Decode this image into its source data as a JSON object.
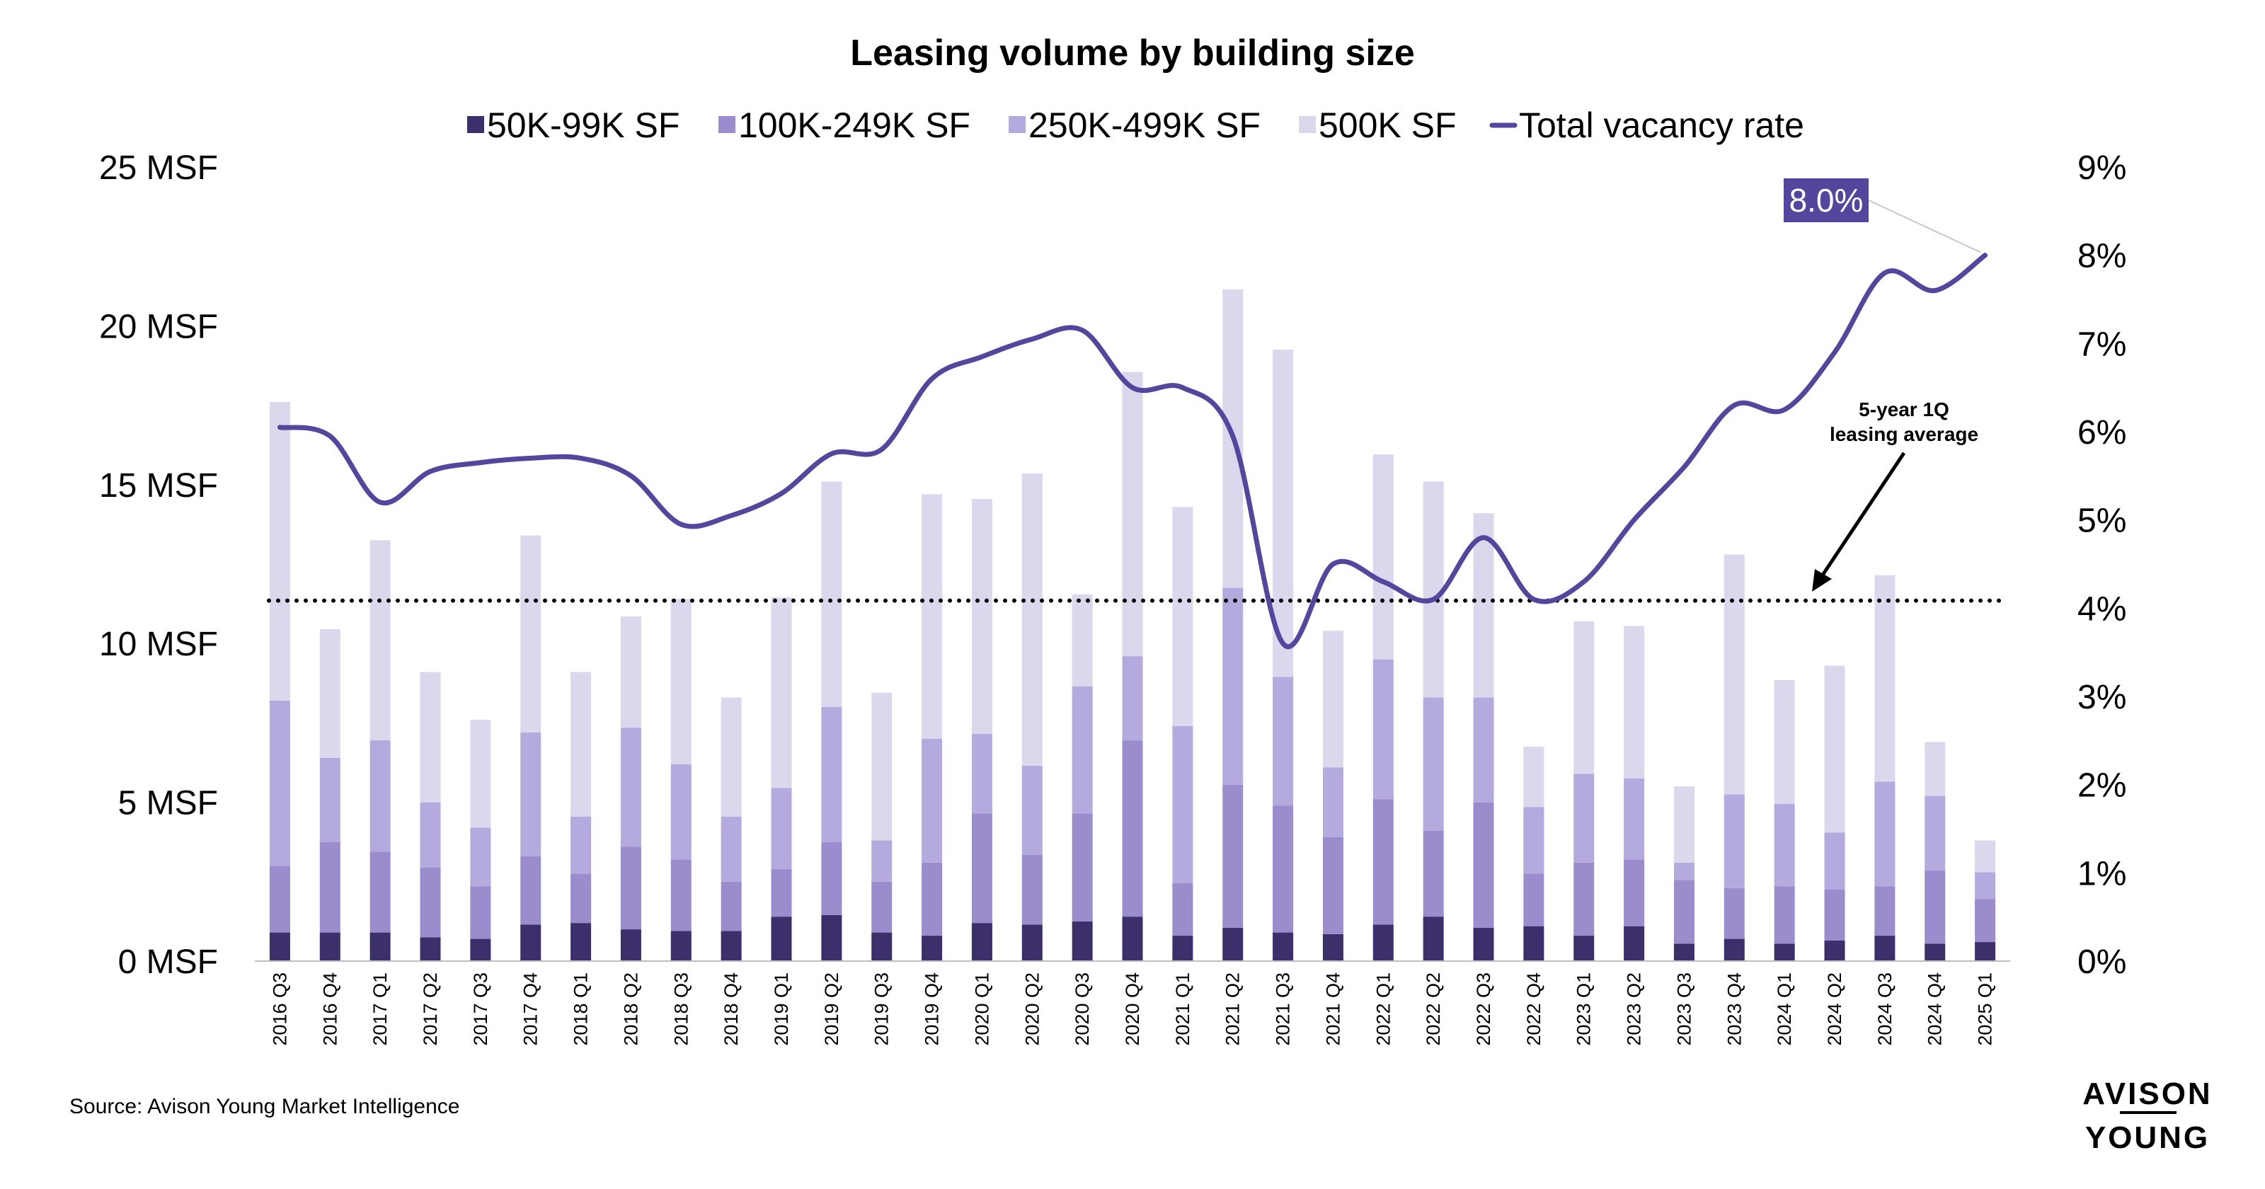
{
  "chart_data": {
    "type": "bar",
    "title": "Leasing volume by building size",
    "categories": [
      "2016 Q3",
      "2016 Q4",
      "2017 Q1",
      "2017 Q2",
      "2017 Q3",
      "2017 Q4",
      "2018 Q1",
      "2018 Q2",
      "2018 Q3",
      "2018 Q4",
      "2019 Q1",
      "2019 Q2",
      "2019 Q3",
      "2019 Q4",
      "2020 Q1",
      "2020 Q2",
      "2020 Q3",
      "2020 Q4",
      "2021 Q1",
      "2021 Q2",
      "2021 Q3",
      "2021 Q4",
      "2022 Q1",
      "2022 Q2",
      "2022 Q3",
      "2022 Q4",
      "2023 Q1",
      "2023 Q2",
      "2023 Q3",
      "2023 Q4",
      "2024 Q1",
      "2024 Q2",
      "2024 Q3",
      "2024 Q4",
      "2025 Q1"
    ],
    "series": [
      {
        "name": "50K-99K SF",
        "color": "#3c2f6b",
        "values": [
          0.9,
          0.9,
          0.9,
          0.75,
          0.7,
          1.15,
          1.2,
          1.0,
          0.95,
          0.95,
          1.4,
          1.45,
          0.9,
          0.8,
          1.2,
          1.15,
          1.25,
          1.4,
          0.8,
          1.05,
          0.9,
          0.85,
          1.15,
          1.4,
          1.05,
          1.1,
          0.8,
          1.1,
          0.55,
          0.7,
          0.55,
          0.65,
          0.8,
          0.55,
          0.6
        ]
      },
      {
        "name": "100K-249K SF",
        "color": "#9a8ccd",
        "values": [
          2.1,
          2.85,
          2.55,
          2.2,
          1.65,
          2.15,
          1.55,
          2.6,
          2.25,
          1.55,
          1.5,
          2.3,
          1.6,
          2.3,
          3.45,
          2.2,
          3.4,
          5.55,
          1.65,
          4.5,
          4.0,
          3.05,
          3.95,
          2.7,
          3.95,
          1.65,
          2.3,
          2.1,
          2.0,
          1.6,
          1.8,
          1.6,
          1.55,
          2.3,
          1.35
        ]
      },
      {
        "name": "250K-499K SF",
        "color": "#b5aadd",
        "values": [
          5.2,
          2.65,
          3.5,
          2.05,
          1.85,
          3.9,
          1.8,
          3.75,
          3.0,
          2.05,
          2.55,
          4.25,
          1.3,
          3.9,
          2.5,
          2.8,
          4.0,
          2.65,
          4.95,
          6.2,
          4.05,
          2.2,
          4.4,
          4.2,
          3.3,
          2.1,
          2.8,
          2.55,
          0.55,
          2.95,
          2.6,
          1.8,
          3.3,
          2.35,
          0.85
        ]
      },
      {
        "name": "500K SF",
        "color": "#dbd7ed",
        "values": [
          9.4,
          4.05,
          6.3,
          4.1,
          3.4,
          6.2,
          4.55,
          3.5,
          5.2,
          3.75,
          6.0,
          7.1,
          4.65,
          7.7,
          7.4,
          9.2,
          2.9,
          8.95,
          6.9,
          9.4,
          10.3,
          4.3,
          6.45,
          6.8,
          5.8,
          1.9,
          4.8,
          4.8,
          2.4,
          7.55,
          3.9,
          5.25,
          6.5,
          1.7,
          1.0
        ]
      }
    ],
    "line_series": {
      "name": "Total vacancy rate",
      "color": "#54469c",
      "axis": "right",
      "values": [
        6.05,
        5.95,
        5.2,
        5.55,
        5.65,
        5.7,
        5.7,
        5.5,
        4.95,
        5.05,
        5.3,
        5.75,
        5.8,
        6.6,
        6.85,
        7.05,
        7.15,
        6.5,
        6.5,
        5.95,
        3.6,
        4.5,
        4.3,
        4.1,
        4.8,
        4.1,
        4.3,
        5.0,
        5.6,
        6.3,
        6.25,
        6.9,
        7.8,
        7.6,
        8.0
      ]
    },
    "reference_line": {
      "label": "5-year 1Q leasing average",
      "value": 11.35
    },
    "y_left": {
      "min": 0,
      "max": 25,
      "step": 5,
      "tick_labels": [
        "0 MSF",
        "5 MSF",
        "10 MSF",
        "15 MSF",
        "20 MSF",
        "25 MSF"
      ]
    },
    "y_right": {
      "min": 0,
      "max": 9,
      "step": 1,
      "tick_labels": [
        "0%",
        "1%",
        "2%",
        "3%",
        "4%",
        "5%",
        "6%",
        "7%",
        "8%",
        "9%"
      ]
    },
    "legend": {
      "placement": "top-center",
      "labels": [
        "50K-99K SF",
        "100K-249K SF",
        "250K-499K SF",
        "500K SF",
        "Total vacancy rate"
      ]
    },
    "annotations": {
      "reference_label_lines": [
        "5-year 1Q",
        "leasing average"
      ],
      "callout_label": "8.0%"
    },
    "grid": false
  },
  "footer": {
    "source": "Source: Avison Young Market Intelligence"
  },
  "logo": {
    "line1": "AVISON",
    "line2": "YOUNG"
  }
}
